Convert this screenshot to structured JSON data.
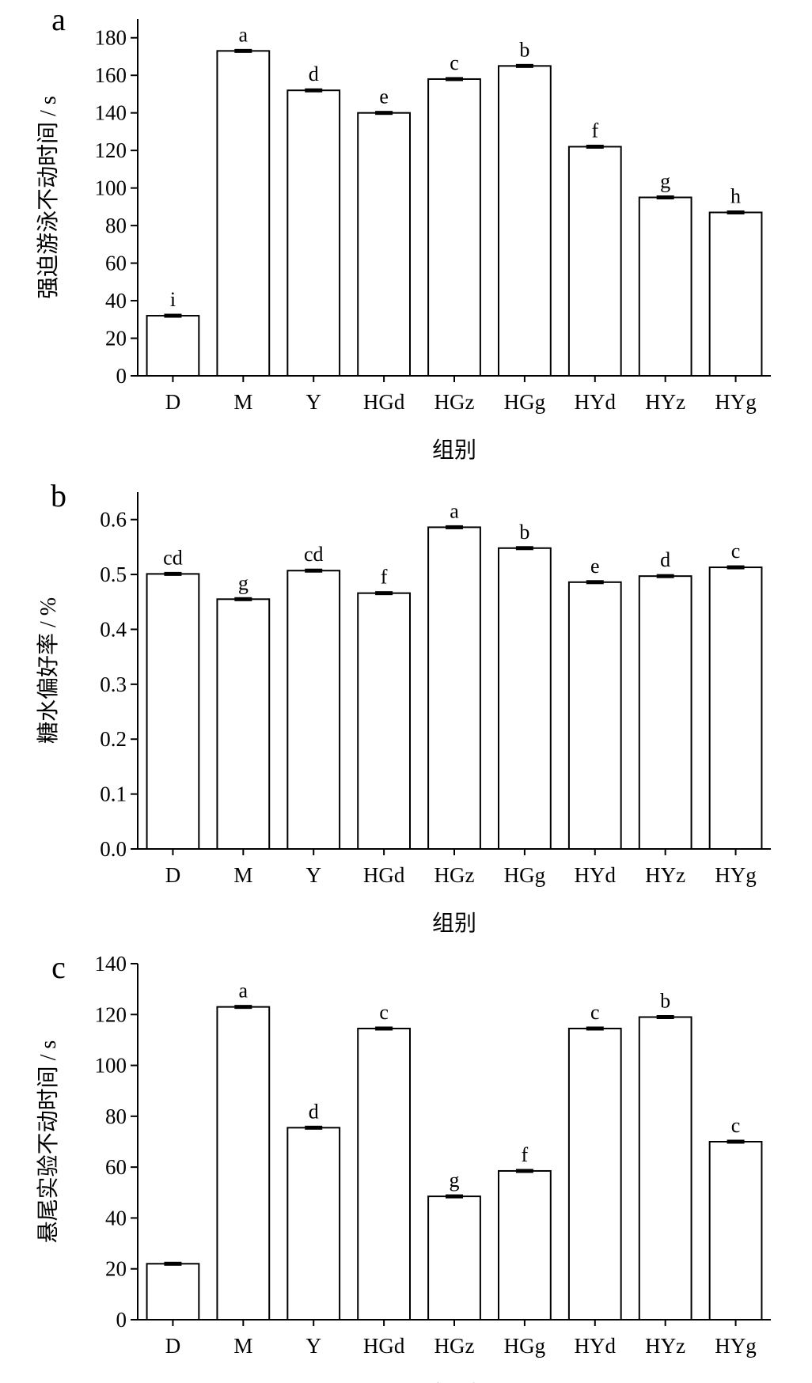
{
  "chart_data": [
    {
      "type": "bar",
      "panel_label": "a",
      "categories": [
        "D",
        "M",
        "Y",
        "HGd",
        "HGz",
        "HGg",
        "HYd",
        "HYz",
        "HYg"
      ],
      "values": [
        32,
        173,
        152,
        140,
        158,
        165,
        122,
        95,
        87
      ],
      "significance_labels": [
        "i",
        "a",
        "d",
        "e",
        "c",
        "b",
        "f",
        "g",
        "h"
      ],
      "xlabel": "组别",
      "ylabel": "强迫游泳不动时间 / s",
      "ylim": [
        0,
        190
      ],
      "yticks": [
        0,
        20,
        40,
        60,
        80,
        100,
        120,
        140,
        160,
        180
      ],
      "ytick_labels": [
        "0",
        "20",
        "40",
        "60",
        "80",
        "100",
        "120",
        "140",
        "160",
        "180"
      ],
      "grid": false
    },
    {
      "type": "bar",
      "panel_label": "b",
      "categories": [
        "D",
        "M",
        "Y",
        "HGd",
        "HGz",
        "HGg",
        "HYd",
        "HYz",
        "HYg"
      ],
      "values": [
        0.501,
        0.455,
        0.507,
        0.466,
        0.586,
        0.548,
        0.486,
        0.497,
        0.513
      ],
      "significance_labels": [
        "cd",
        "g",
        "cd",
        "f",
        "a",
        "b",
        "e",
        "d",
        "c"
      ],
      "xlabel": "组别",
      "ylabel": "糖水偏好率 / %",
      "ylim": [
        0,
        0.65
      ],
      "yticks": [
        0,
        0.1,
        0.2,
        0.3,
        0.4,
        0.5,
        0.6
      ],
      "ytick_labels": [
        "0.0",
        "0.1",
        "0.2",
        "0.3",
        "0.4",
        "0.5",
        "0.6"
      ],
      "grid": false
    },
    {
      "type": "bar",
      "panel_label": "c",
      "categories": [
        "D",
        "M",
        "Y",
        "HGd",
        "HGz",
        "HGg",
        "HYd",
        "HYz",
        "HYg"
      ],
      "values": [
        22,
        123,
        75.5,
        114.5,
        48.5,
        58.5,
        114.5,
        119,
        70
      ],
      "significance_labels": [
        "",
        "a",
        "d",
        "c",
        "g",
        "f",
        "c",
        "b",
        "c"
      ],
      "xlabel": "组别",
      "ylabel": "悬尾实验不动时间 / s",
      "ylim": [
        0,
        140
      ],
      "yticks": [
        0,
        20,
        40,
        60,
        80,
        100,
        120,
        140
      ],
      "ytick_labels": [
        "0",
        "20",
        "40",
        "60",
        "80",
        "100",
        "120",
        "140"
      ],
      "grid": false
    }
  ]
}
